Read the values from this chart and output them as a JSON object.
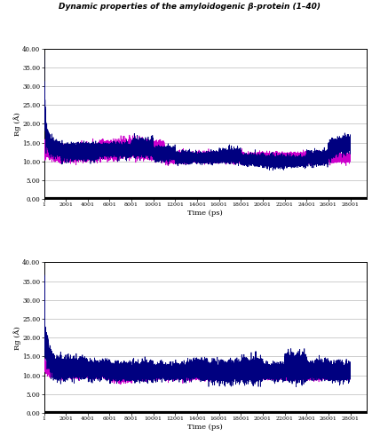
{
  "title": "Dynamic properties of the amyloidogenic β-protein (1–40)",
  "subplot1": {
    "ylabel": "Rg (Å)",
    "xlabel": "Time (ps)",
    "ylim": [
      0.0,
      40.0
    ],
    "yticks": [
      0.0,
      5.0,
      10.0,
      15.0,
      20.0,
      25.0,
      30.0,
      35.0,
      40.0
    ],
    "xticks": [
      1,
      2001,
      4001,
      6001,
      8001,
      10001,
      12001,
      14001,
      16001,
      18001,
      20001,
      22001,
      24001,
      26001,
      28001
    ],
    "xlim": [
      1,
      29500
    ]
  },
  "subplot2": {
    "ylabel": "Rg (Å)",
    "xlabel": "Time (ps)",
    "ylim": [
      0.0,
      40.0
    ],
    "yticks": [
      0.0,
      5.0,
      10.0,
      15.0,
      20.0,
      25.0,
      30.0,
      35.0,
      40.0
    ],
    "xticks": [
      1,
      2001,
      4001,
      6001,
      8001,
      10001,
      12001,
      14001,
      16001,
      18001,
      20001,
      22001,
      24001,
      26001,
      28001
    ],
    "xlim": [
      1,
      29500
    ]
  },
  "color_A": "#CC00CC",
  "color_B": "#000080",
  "background": "#ffffff"
}
